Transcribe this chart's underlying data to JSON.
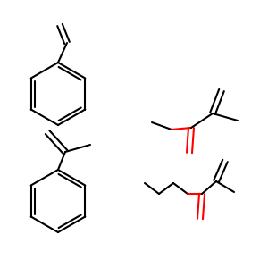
{
  "background": "#ffffff",
  "bond_color": "#000000",
  "oxygen_color": "#ff0000",
  "lw": 1.5,
  "figsize": [
    3.0,
    3.0
  ],
  "dpi": 100
}
